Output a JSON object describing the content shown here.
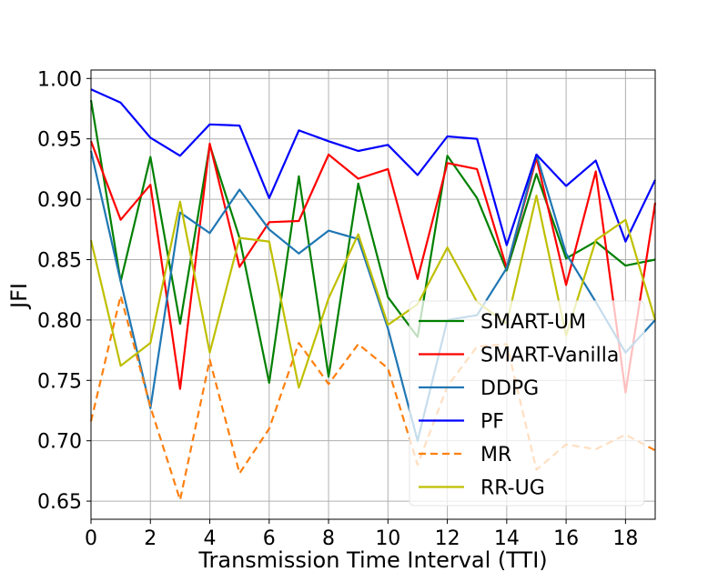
{
  "chart_data": {
    "type": "line",
    "xlabel": "Transmission Time Interval (TTI)",
    "ylabel": "JFI",
    "xlim": [
      0,
      19
    ],
    "ylim": [
      0.635,
      1.007
    ],
    "xticks": [
      0,
      2,
      4,
      6,
      8,
      10,
      12,
      14,
      16,
      18
    ],
    "yticks": [
      0.65,
      0.7,
      0.75,
      0.8,
      0.85,
      0.9,
      0.95,
      1.0
    ],
    "ytick_labels": [
      "0.65",
      "0.70",
      "0.75",
      "0.80",
      "0.85",
      "0.90",
      "0.95",
      "1.00"
    ],
    "grid": true,
    "legend_position": "lower-right",
    "x": [
      0,
      1,
      2,
      3,
      4,
      5,
      6,
      7,
      8,
      9,
      10,
      11,
      12,
      13,
      14,
      15,
      16,
      17,
      18,
      19
    ],
    "series": [
      {
        "name": "SMART-UM",
        "color": "#008000",
        "dash": "solid",
        "values": [
          0.982,
          0.832,
          0.935,
          0.797,
          0.945,
          0.868,
          0.748,
          0.919,
          0.753,
          0.913,
          0.819,
          0.786,
          0.936,
          0.901,
          0.841,
          0.921,
          0.851,
          0.865,
          0.845,
          0.85
        ]
      },
      {
        "name": "SMART-Vanilla",
        "color": "#ff0000",
        "dash": "solid",
        "values": [
          0.948,
          0.883,
          0.912,
          0.743,
          0.946,
          0.844,
          0.881,
          0.882,
          0.937,
          0.917,
          0.925,
          0.834,
          0.93,
          0.925,
          0.843,
          0.934,
          0.829,
          0.923,
          0.74,
          0.897
        ]
      },
      {
        "name": "DDPG",
        "color": "#1f77b4",
        "dash": "solid",
        "values": [
          0.94,
          0.832,
          0.727,
          0.889,
          0.872,
          0.908,
          0.875,
          0.855,
          0.874,
          0.867,
          0.793,
          0.7,
          0.8,
          0.804,
          0.843,
          0.937,
          0.855,
          0.815,
          0.773,
          0.8
        ]
      },
      {
        "name": "PF",
        "color": "#0000ff",
        "dash": "solid",
        "values": [
          0.991,
          0.98,
          0.951,
          0.936,
          0.962,
          0.961,
          0.901,
          0.957,
          0.948,
          0.94,
          0.945,
          0.92,
          0.952,
          0.95,
          0.862,
          0.937,
          0.911,
          0.932,
          0.865,
          0.916
        ]
      },
      {
        "name": "MR",
        "color": "#ff7f0e",
        "dash": "dashed",
        "values": [
          0.716,
          0.82,
          0.728,
          0.651,
          0.767,
          0.673,
          0.71,
          0.781,
          0.747,
          0.78,
          0.76,
          0.68,
          0.745,
          0.778,
          0.78,
          0.676,
          0.697,
          0.693,
          0.705,
          0.692
        ]
      },
      {
        "name": "RR-UG",
        "color": "#bfbf00",
        "dash": "solid",
        "values": [
          0.866,
          0.762,
          0.781,
          0.898,
          0.773,
          0.868,
          0.865,
          0.744,
          0.818,
          0.871,
          0.796,
          0.813,
          0.86,
          0.815,
          0.797,
          0.903,
          0.787,
          0.866,
          0.883,
          0.8
        ]
      }
    ]
  }
}
